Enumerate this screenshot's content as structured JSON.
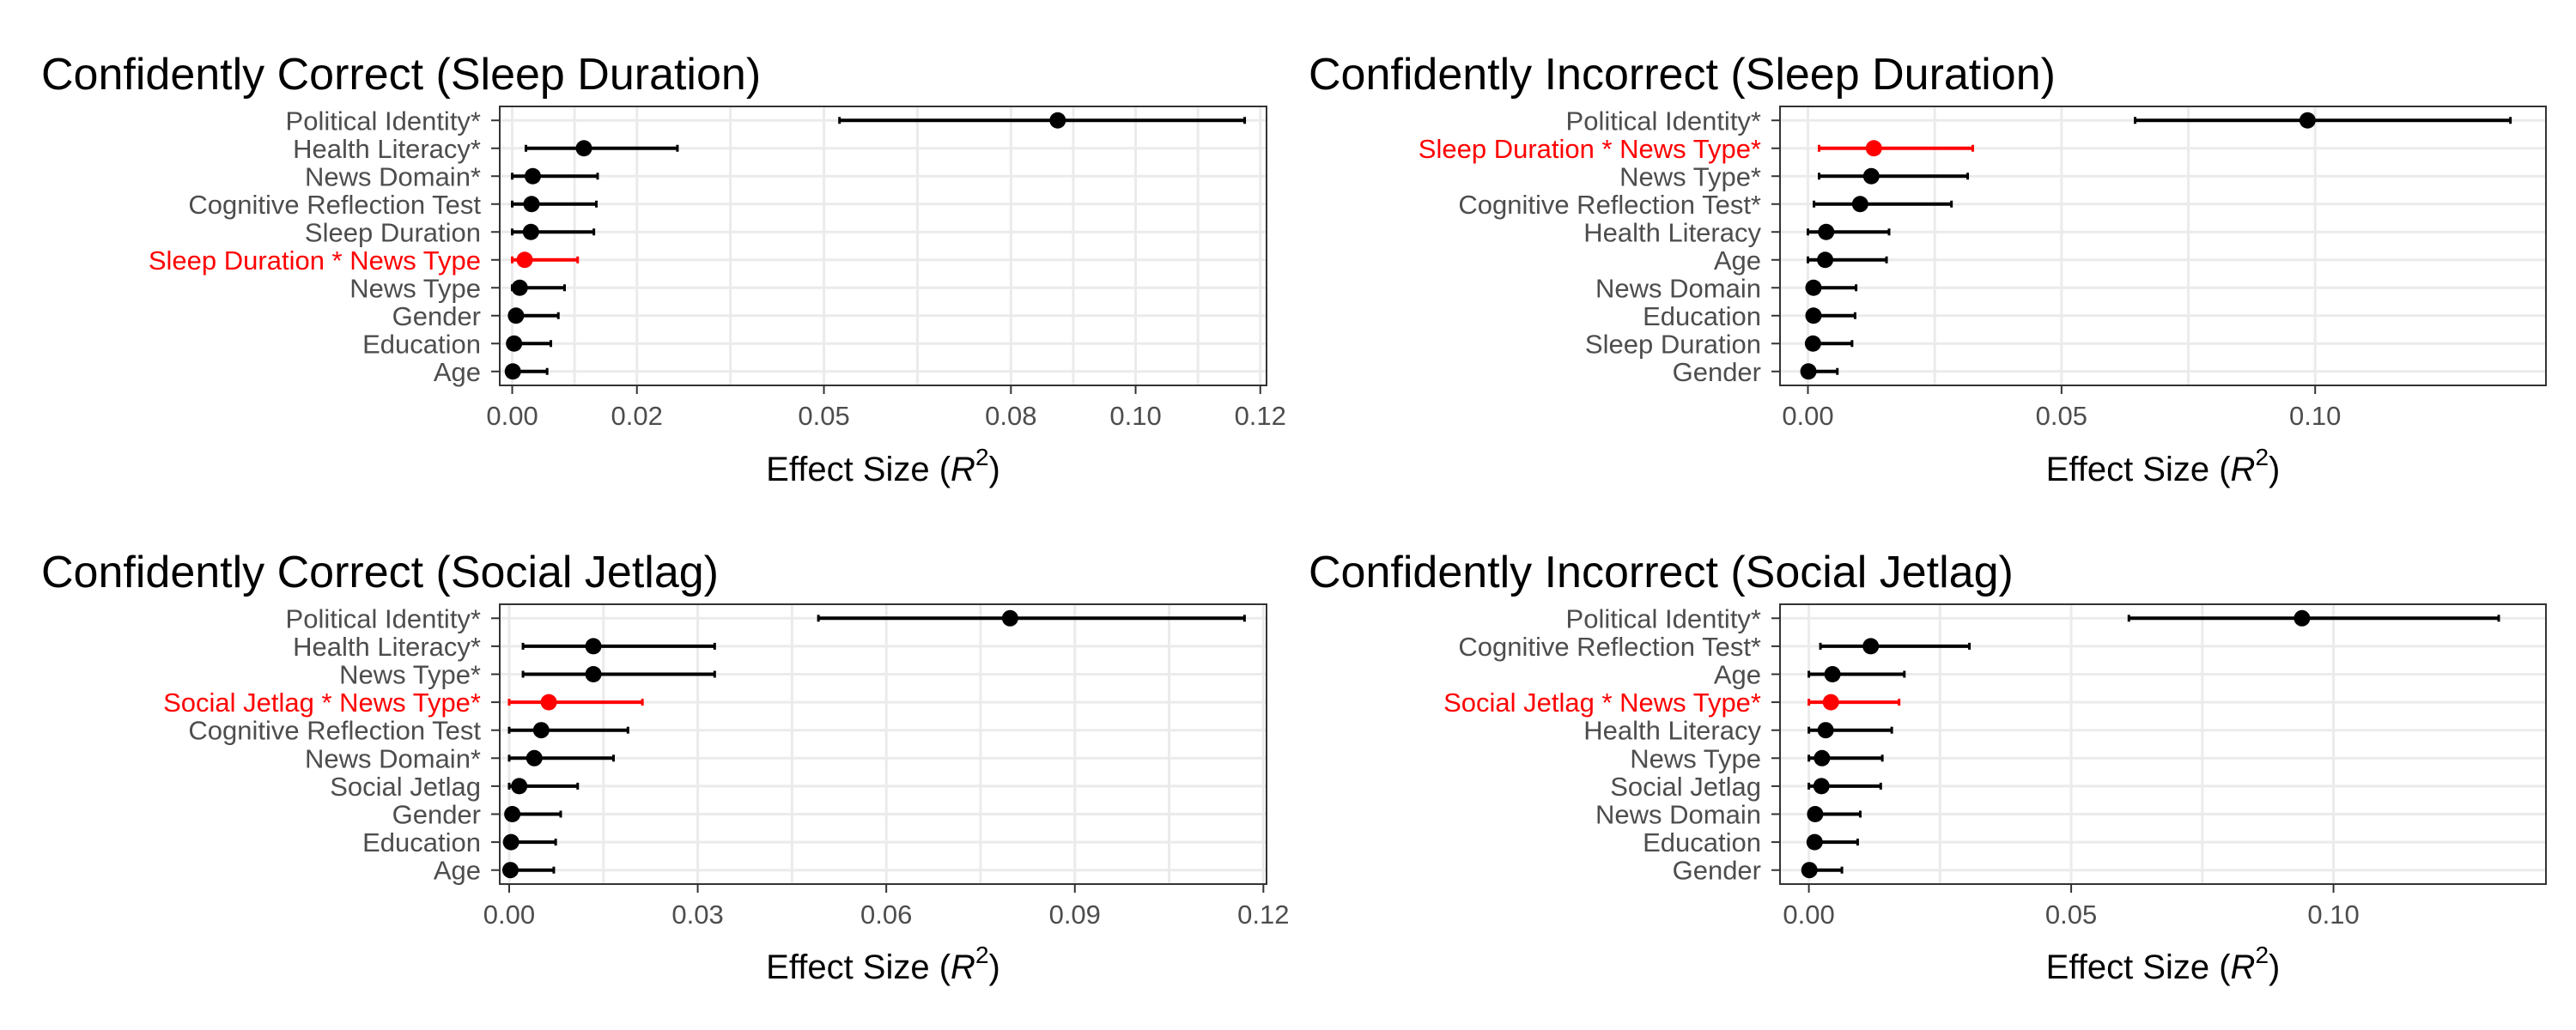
{
  "chart_data": [
    {
      "type": "forest",
      "title": "Confidently Correct (Sleep Duration)",
      "xlabel": "Effect Size (R²)",
      "xlabel_parts": {
        "prefix": "Effect Size (",
        "var": "R",
        "sup": "2",
        "suffix": ")"
      },
      "xlim": [
        -0.002,
        0.121
      ],
      "xticks": [
        0.0,
        0.02,
        0.05,
        0.08,
        0.1,
        0.12
      ],
      "xtick_labels": [
        "0.00",
        "0.02",
        "0.05",
        "0.08",
        "0.10",
        "0.12"
      ],
      "grid": true,
      "highlight_color": "#ff0000",
      "point_color": "#000000",
      "rows": [
        {
          "label": "Political Identity*",
          "estimate": 0.0875,
          "lower": 0.0525,
          "upper": 0.1175,
          "highlight": false
        },
        {
          "label": "Health Literacy*",
          "estimate": 0.0115,
          "lower": 0.0022,
          "upper": 0.0265,
          "highlight": false
        },
        {
          "label": "News Domain*",
          "estimate": 0.0033,
          "lower": 0.0,
          "upper": 0.0137,
          "highlight": false
        },
        {
          "label": "Cognitive Reflection Test",
          "estimate": 0.0031,
          "lower": 0.0,
          "upper": 0.0135,
          "highlight": false
        },
        {
          "label": "Sleep Duration",
          "estimate": 0.003,
          "lower": 0.0,
          "upper": 0.0131,
          "highlight": false
        },
        {
          "label": "Sleep Duration * News Type",
          "estimate": 0.002,
          "lower": 0.0,
          "upper": 0.0105,
          "highlight": true
        },
        {
          "label": "News Type",
          "estimate": 0.0012,
          "lower": 0.0,
          "upper": 0.0084,
          "highlight": false
        },
        {
          "label": "Gender",
          "estimate": 0.0006,
          "lower": 0.0,
          "upper": 0.0074,
          "highlight": false
        },
        {
          "label": "Education",
          "estimate": 0.0003,
          "lower": 0.0,
          "upper": 0.0062,
          "highlight": false
        },
        {
          "label": "Age",
          "estimate": 0.0001,
          "lower": 0.0,
          "upper": 0.0056,
          "highlight": false
        }
      ]
    },
    {
      "type": "forest",
      "title": "Confidently Incorrect (Sleep Duration)",
      "xlabel": "Effect Size (R²)",
      "xlabel_parts": {
        "prefix": "Effect Size (",
        "var": "R",
        "sup": "2",
        "suffix": ")"
      },
      "xlim": [
        -0.0055,
        0.1455
      ],
      "xticks": [
        0.0,
        0.05,
        0.1
      ],
      "xtick_labels": [
        "0.00",
        "0.05",
        "0.10"
      ],
      "grid": true,
      "highlight_color": "#ff0000",
      "point_color": "#000000",
      "rows": [
        {
          "label": "Political Identity*",
          "estimate": 0.0985,
          "lower": 0.0645,
          "upper": 0.1385,
          "highlight": false
        },
        {
          "label": "Sleep Duration * News Type*",
          "estimate": 0.013,
          "lower": 0.0022,
          "upper": 0.0325,
          "highlight": true
        },
        {
          "label": "News Type*",
          "estimate": 0.0125,
          "lower": 0.0022,
          "upper": 0.0315,
          "highlight": false
        },
        {
          "label": "Cognitive Reflection Test*",
          "estimate": 0.0103,
          "lower": 0.0012,
          "upper": 0.0283,
          "highlight": false
        },
        {
          "label": "Health Literacy",
          "estimate": 0.0036,
          "lower": 0.0,
          "upper": 0.016,
          "highlight": false
        },
        {
          "label": "Age",
          "estimate": 0.0034,
          "lower": 0.0,
          "upper": 0.0155,
          "highlight": false
        },
        {
          "label": "News Domain",
          "estimate": 0.0011,
          "lower": 0.0,
          "upper": 0.0095,
          "highlight": false
        },
        {
          "label": "Education",
          "estimate": 0.0011,
          "lower": 0.0,
          "upper": 0.0093,
          "highlight": false
        },
        {
          "label": "Sleep Duration",
          "estimate": 0.001,
          "lower": 0.0,
          "upper": 0.0087,
          "highlight": false
        },
        {
          "label": "Gender",
          "estimate": 0.0001,
          "lower": 0.0,
          "upper": 0.0058,
          "highlight": false
        }
      ]
    },
    {
      "type": "forest",
      "title": "Confidently Correct (Social Jetlag)",
      "xlabel": "Effect Size (R²)",
      "xlabel_parts": {
        "prefix": "Effect Size (",
        "var": "R",
        "sup": "2",
        "suffix": ")"
      },
      "xlim": [
        -0.0015,
        0.1205
      ],
      "xticks": [
        0.0,
        0.03,
        0.06,
        0.09,
        0.12
      ],
      "xtick_labels": [
        "0.00",
        "0.03",
        "0.06",
        "0.09",
        "0.12"
      ],
      "grid": true,
      "highlight_color": "#ff0000",
      "point_color": "#000000",
      "rows": [
        {
          "label": "Political Identity*",
          "estimate": 0.0797,
          "lower": 0.0492,
          "upper": 0.117,
          "highlight": false
        },
        {
          "label": "Health Literacy*",
          "estimate": 0.0134,
          "lower": 0.0022,
          "upper": 0.0327,
          "highlight": false
        },
        {
          "label": "News Type*",
          "estimate": 0.0134,
          "lower": 0.0022,
          "upper": 0.0327,
          "highlight": false
        },
        {
          "label": "Social Jetlag * News Type*",
          "estimate": 0.0063,
          "lower": 0.0,
          "upper": 0.0212,
          "highlight": true
        },
        {
          "label": "Cognitive Reflection Test",
          "estimate": 0.0051,
          "lower": 0.0,
          "upper": 0.0189,
          "highlight": false
        },
        {
          "label": "News Domain*",
          "estimate": 0.004,
          "lower": 0.0,
          "upper": 0.0166,
          "highlight": false
        },
        {
          "label": "Social Jetlag",
          "estimate": 0.0016,
          "lower": 0.0,
          "upper": 0.0109,
          "highlight": false
        },
        {
          "label": "Gender",
          "estimate": 0.0005,
          "lower": 0.0,
          "upper": 0.0082,
          "highlight": false
        },
        {
          "label": "Education",
          "estimate": 0.0003,
          "lower": 0.0,
          "upper": 0.0074,
          "highlight": false
        },
        {
          "label": "Age",
          "estimate": 0.0002,
          "lower": 0.0,
          "upper": 0.0071,
          "highlight": false
        }
      ]
    },
    {
      "type": "forest",
      "title": "Confidently Incorrect (Social Jetlag)",
      "xlabel": "Effect Size (R²)",
      "xlabel_parts": {
        "prefix": "Effect Size (",
        "var": "R",
        "sup": "2",
        "suffix": ")"
      },
      "xlim": [
        -0.0055,
        0.1405
      ],
      "xticks": [
        0.0,
        0.05,
        0.1
      ],
      "xtick_labels": [
        "0.00",
        "0.05",
        "0.10"
      ],
      "grid": true,
      "highlight_color": "#ff0000",
      "point_color": "#000000",
      "rows": [
        {
          "label": "Political Identity*",
          "estimate": 0.094,
          "lower": 0.061,
          "upper": 0.1315,
          "highlight": false
        },
        {
          "label": "Cognitive Reflection Test*",
          "estimate": 0.0118,
          "lower": 0.0022,
          "upper": 0.0306,
          "highlight": false
        },
        {
          "label": "Age",
          "estimate": 0.0045,
          "lower": 0.0,
          "upper": 0.0182,
          "highlight": false
        },
        {
          "label": "Social Jetlag * News Type*",
          "estimate": 0.0042,
          "lower": 0.0,
          "upper": 0.0172,
          "highlight": true
        },
        {
          "label": "Health Literacy",
          "estimate": 0.0032,
          "lower": 0.0,
          "upper": 0.0158,
          "highlight": false
        },
        {
          "label": "News Type",
          "estimate": 0.0025,
          "lower": 0.0,
          "upper": 0.014,
          "highlight": false
        },
        {
          "label": "Social Jetlag",
          "estimate": 0.0024,
          "lower": 0.0,
          "upper": 0.0137,
          "highlight": false
        },
        {
          "label": "News Domain",
          "estimate": 0.0012,
          "lower": 0.0,
          "upper": 0.0098,
          "highlight": false
        },
        {
          "label": "Education",
          "estimate": 0.0011,
          "lower": 0.0,
          "upper": 0.0093,
          "highlight": false
        },
        {
          "label": "Gender",
          "estimate": 0.0001,
          "lower": 0.0,
          "upper": 0.0063,
          "highlight": false
        }
      ]
    }
  ]
}
